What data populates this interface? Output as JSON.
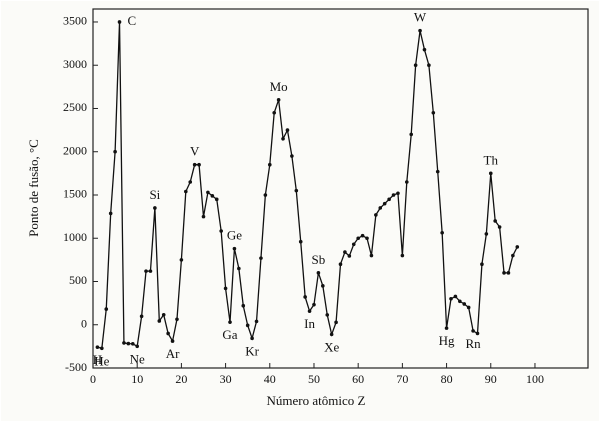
{
  "chart_data": {
    "type": "line",
    "y_label": "Ponto de fusão, °C",
    "x_label": "Número atômico Z",
    "x": [
      1,
      2,
      3,
      4,
      5,
      6,
      7,
      8,
      9,
      10,
      11,
      12,
      13,
      14,
      15,
      16,
      17,
      18,
      19,
      20,
      21,
      22,
      23,
      24,
      25,
      26,
      27,
      28,
      29,
      30,
      31,
      32,
      33,
      34,
      35,
      36,
      37,
      38,
      39,
      40,
      41,
      42,
      43,
      44,
      45,
      46,
      47,
      48,
      49,
      50,
      51,
      52,
      53,
      54,
      55,
      56,
      57,
      58,
      59,
      60,
      61,
      62,
      63,
      64,
      65,
      66,
      67,
      68,
      69,
      70,
      71,
      72,
      73,
      74,
      75,
      76,
      77,
      78,
      79,
      80,
      81,
      82,
      83,
      84,
      85,
      86,
      87,
      88,
      89,
      90,
      91,
      92,
      93,
      94,
      95,
      96
    ],
    "series": [
      {
        "name": "Ponto de fusão",
        "color": "#111111",
        "values": [
          -259,
          -272,
          181,
          1287,
          2000,
          3500,
          -210,
          -218,
          -220,
          -249,
          98,
          620,
          620,
          1350,
          44,
          115,
          -101,
          -189,
          63,
          750,
          1540,
          1650,
          1850,
          1850,
          1250,
          1530,
          1490,
          1450,
          1083,
          420,
          30,
          880,
          650,
          220,
          -7,
          -157,
          39,
          770,
          1500,
          1850,
          2450,
          2600,
          2150,
          2250,
          1950,
          1550,
          960,
          321,
          157,
          232,
          600,
          450,
          114,
          -112,
          28,
          700,
          840,
          795,
          930,
          1000,
          1030,
          1000,
          800,
          1270,
          1350,
          1400,
          1450,
          1500,
          1520,
          800,
          1650,
          2200,
          3000,
          3400,
          3180,
          3000,
          2450,
          1770,
          1063,
          -39,
          300,
          327,
          271,
          240,
          200,
          -71,
          -100,
          700,
          1050,
          1750,
          1200,
          1130,
          600,
          600,
          800,
          900
        ]
      }
    ],
    "annotations": [
      {
        "label": "H",
        "x": 1,
        "placement": "below"
      },
      {
        "label": "He",
        "x": 2,
        "placement": "below"
      },
      {
        "label": "C",
        "x": 6,
        "placement": "right"
      },
      {
        "label": "Ne",
        "x": 10,
        "placement": "below"
      },
      {
        "label": "Si",
        "x": 14,
        "placement": "above"
      },
      {
        "label": "Ar",
        "x": 18,
        "placement": "below"
      },
      {
        "label": "V",
        "x": 23,
        "placement": "above"
      },
      {
        "label": "Ga",
        "x": 31,
        "placement": "below"
      },
      {
        "label": "Ge",
        "x": 32,
        "placement": "above"
      },
      {
        "label": "Kr",
        "x": 36,
        "placement": "below"
      },
      {
        "label": "Mo",
        "x": 42,
        "placement": "above"
      },
      {
        "label": "In",
        "x": 49,
        "placement": "below"
      },
      {
        "label": "Sb",
        "x": 51,
        "placement": "above"
      },
      {
        "label": "Xe",
        "x": 54,
        "placement": "below"
      },
      {
        "label": "W",
        "x": 74,
        "placement": "above"
      },
      {
        "label": "Hg",
        "x": 80,
        "placement": "below"
      },
      {
        "label": "Rn",
        "x": 86,
        "placement": "below"
      },
      {
        "label": "Th",
        "x": 90,
        "placement": "above"
      }
    ],
    "xlim": [
      0,
      112
    ],
    "ylim": [
      -500,
      3650
    ],
    "xticks": [
      0,
      10,
      20,
      30,
      40,
      50,
      60,
      70,
      80,
      90,
      100
    ],
    "yticks": [
      -500,
      0,
      500,
      1000,
      1500,
      2000,
      2500,
      3000,
      3500
    ],
    "grid": false
  }
}
